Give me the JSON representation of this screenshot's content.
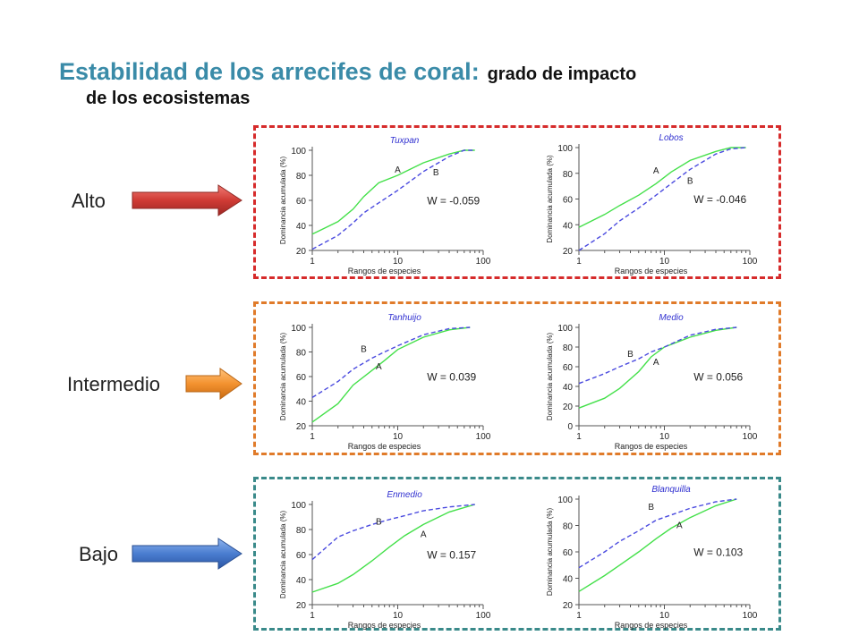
{
  "title": {
    "main": "Estabilidad de los arrecifes de coral:",
    "sub_line1": "grado de impacto",
    "sub_line2": "de los ecosistemas"
  },
  "colors": {
    "title": "#3a8ba8",
    "alto_border": "#d62b2b",
    "intermedio_border": "#e07b2a",
    "bajo_border": "#3a8a8a",
    "curve_A": "#44e04a",
    "curve_B": "#4a4adf"
  },
  "levels": [
    {
      "label": "Alto",
      "arrow": "red-arrow"
    },
    {
      "label": "Intermedio",
      "arrow": "orange-arrow"
    },
    {
      "label": "Bajo",
      "arrow": "blue-arrow"
    }
  ],
  "chart_data": [
    {
      "type": "line",
      "title": "Tuxpan",
      "xlabel": "Rangos de especies",
      "ylabel": "Dominancia acumulada (%)",
      "xscale": "log",
      "xlim": [
        1,
        100
      ],
      "ylim": [
        20,
        100
      ],
      "xticks": [
        "1",
        "10",
        "100"
      ],
      "yticks": [
        "20",
        "40",
        "60",
        "80",
        "100"
      ],
      "annotation": "W = -0.059",
      "series": [
        {
          "name": "A",
          "x": [
            1,
            2,
            3,
            4,
            6,
            10,
            20,
            40,
            60,
            80
          ],
          "values": [
            33,
            43,
            53,
            63,
            74,
            80,
            90,
            97,
            100,
            100
          ]
        },
        {
          "name": "B",
          "x": [
            1,
            2,
            3,
            4,
            6,
            10,
            20,
            40,
            60,
            80
          ],
          "values": [
            21,
            32,
            42,
            50,
            58,
            68,
            83,
            95,
            100,
            100
          ]
        }
      ]
    },
    {
      "type": "line",
      "title": "Lobos",
      "xlabel": "Rangos de especies",
      "ylabel": "Dominancia acumulada (%)",
      "xscale": "log",
      "xlim": [
        1,
        100
      ],
      "ylim": [
        20,
        100
      ],
      "xticks": [
        "1",
        "10",
        "100"
      ],
      "yticks": [
        "20",
        "40",
        "60",
        "80",
        "100"
      ],
      "annotation": "W = -0.046",
      "series": [
        {
          "name": "A",
          "x": [
            1,
            2,
            3,
            5,
            8,
            12,
            20,
            40,
            60,
            90
          ],
          "values": [
            38,
            48,
            55,
            63,
            72,
            81,
            90,
            97,
            100,
            100
          ]
        },
        {
          "name": "B",
          "x": [
            1,
            2,
            3,
            5,
            8,
            12,
            20,
            40,
            60,
            90
          ],
          "values": [
            20,
            33,
            43,
            53,
            63,
            72,
            83,
            95,
            99,
            100
          ]
        }
      ]
    },
    {
      "type": "line",
      "title": "Tanhuijo",
      "xlabel": "Rangos de especies",
      "ylabel": "Dominancia acumulada (%)",
      "xscale": "log",
      "xlim": [
        1,
        100
      ],
      "ylim": [
        20,
        100
      ],
      "xticks": [
        "1",
        "10",
        "100"
      ],
      "yticks": [
        "20",
        "40",
        "60",
        "80",
        "100"
      ],
      "annotation": "W = 0.039",
      "series": [
        {
          "name": "A",
          "x": [
            1,
            2,
            3,
            5,
            7,
            10,
            20,
            40,
            70
          ],
          "values": [
            23,
            38,
            53,
            65,
            73,
            82,
            92,
            98,
            100
          ]
        },
        {
          "name": "B",
          "x": [
            1,
            2,
            3,
            5,
            7,
            10,
            20,
            40,
            70
          ],
          "values": [
            43,
            56,
            66,
            75,
            80,
            85,
            94,
            99,
            100
          ]
        }
      ]
    },
    {
      "type": "line",
      "title": "Medio",
      "xlabel": "Rangos de especies",
      "ylabel": "Dominancia acumulada (%)",
      "xscale": "log",
      "xlim": [
        1,
        100
      ],
      "ylim": [
        0,
        100
      ],
      "xticks": [
        "1",
        "10",
        "100"
      ],
      "yticks": [
        "0",
        "20",
        "40",
        "60",
        "80",
        "100"
      ],
      "annotation": "W = 0.056",
      "series": [
        {
          "name": "A",
          "x": [
            1,
            2,
            3,
            5,
            7,
            10,
            20,
            40,
            70
          ],
          "values": [
            18,
            28,
            38,
            55,
            70,
            80,
            90,
            97,
            100
          ]
        },
        {
          "name": "B",
          "x": [
            1,
            2,
            3,
            5,
            7,
            10,
            20,
            40,
            70
          ],
          "values": [
            43,
            53,
            60,
            68,
            75,
            80,
            92,
            98,
            100
          ]
        }
      ]
    },
    {
      "type": "line",
      "title": "Enmedio",
      "xlabel": "Rangos de especies",
      "ylabel": "Dominancia acumulada (%)",
      "xscale": "log",
      "xlim": [
        1,
        100
      ],
      "ylim": [
        20,
        100
      ],
      "xticks": [
        "1",
        "10",
        "100"
      ],
      "yticks": [
        "20",
        "40",
        "60",
        "80",
        "100"
      ],
      "annotation": "W = 0.157",
      "series": [
        {
          "name": "A",
          "x": [
            1,
            2,
            3,
            5,
            8,
            12,
            20,
            40,
            80
          ],
          "values": [
            30,
            37,
            44,
            55,
            66,
            75,
            84,
            94,
            100
          ]
        },
        {
          "name": "B",
          "x": [
            1,
            2,
            3,
            5,
            8,
            12,
            20,
            40,
            80
          ],
          "values": [
            56,
            74,
            79,
            84,
            88,
            91,
            95,
            98,
            100
          ]
        }
      ]
    },
    {
      "type": "line",
      "title": "Blanquilla",
      "xlabel": "Rangos de especies",
      "ylabel": "Dominancia acumulada (%)",
      "xscale": "log",
      "xlim": [
        1,
        100
      ],
      "ylim": [
        20,
        100
      ],
      "xticks": [
        "1",
        "10",
        "100"
      ],
      "yticks": [
        "20",
        "40",
        "60",
        "80",
        "100"
      ],
      "annotation": "W = 0.103",
      "series": [
        {
          "name": "A",
          "x": [
            1,
            2,
            3,
            5,
            8,
            12,
            20,
            40,
            70
          ],
          "values": [
            30,
            42,
            50,
            60,
            70,
            78,
            86,
            95,
            100
          ]
        },
        {
          "name": "B",
          "x": [
            1,
            2,
            3,
            5,
            8,
            12,
            20,
            40,
            70
          ],
          "values": [
            48,
            60,
            68,
            76,
            84,
            88,
            93,
            98,
            100
          ]
        }
      ]
    }
  ]
}
